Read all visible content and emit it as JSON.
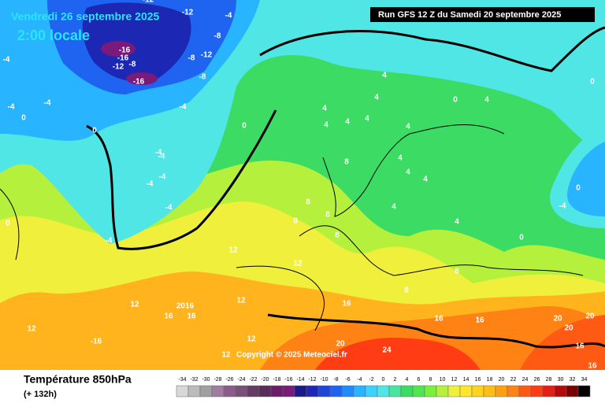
{
  "header": {
    "date": "Vendredi 26 septembre 2025",
    "time": "2:00 locale",
    "run": "Run GFS 12 Z du Samedi 20 septembre 2025"
  },
  "footer": {
    "title": "Température 850hPa",
    "lead": "(+ 132h)",
    "copyright": "Copyright © 2025 Meteociel.fr"
  },
  "legend": {
    "values": [
      -34,
      -32,
      -30,
      -28,
      -26,
      -24,
      -22,
      -20,
      -18,
      -16,
      -14,
      -12,
      -10,
      -8,
      -6,
      -4,
      -2,
      0,
      2,
      4,
      6,
      8,
      10,
      12,
      14,
      16,
      18,
      20,
      22,
      24,
      26,
      28,
      30,
      32,
      34
    ],
    "colors": [
      "#d8d8d8",
      "#bcbcbc",
      "#a0a0a0",
      "#a07ca0",
      "#8c5a8c",
      "#78507a",
      "#643c64",
      "#5a2c5a",
      "#6a1e6a",
      "#7a1a7a",
      "#1a1a8c",
      "#1c28b4",
      "#1e46d8",
      "#1e64f0",
      "#1e8cff",
      "#28b4ff",
      "#3cd2ff",
      "#50e6e6",
      "#46e6a0",
      "#3cdc64",
      "#50e650",
      "#78f03c",
      "#b4f03c",
      "#f0f03c",
      "#ffe628",
      "#ffd21e",
      "#ffbe14",
      "#ffa014",
      "#ff8214",
      "#ff5a14",
      "#ff3c14",
      "#e61e14",
      "#b40a0a",
      "#780000",
      "#000000"
    ]
  },
  "contour_labels": [
    "-12",
    "-12",
    "-4",
    "-8",
    "-16",
    "-16",
    "-8",
    "-12",
    "-12",
    "-8",
    "-8",
    "-16",
    "-4",
    "-4",
    "-4",
    "-4",
    "0",
    "0",
    "0",
    "-4",
    "-4",
    "-4",
    "-4",
    "-4",
    "4",
    "4",
    "4",
    "4",
    "4",
    "4",
    "0",
    "4",
    "4",
    "4",
    "8",
    "8",
    "8",
    "8",
    "4",
    "4",
    "4",
    "4",
    "0",
    "0",
    "0",
    "-4",
    "-4",
    "0",
    "8",
    "12",
    "12",
    "12",
    "12",
    "16",
    "2016",
    "16",
    "12",
    "-16",
    "12",
    "12",
    "16",
    "20",
    "24",
    "8",
    "16",
    "16",
    "20",
    "20",
    "20",
    "16",
    "16",
    "8"
  ]
}
